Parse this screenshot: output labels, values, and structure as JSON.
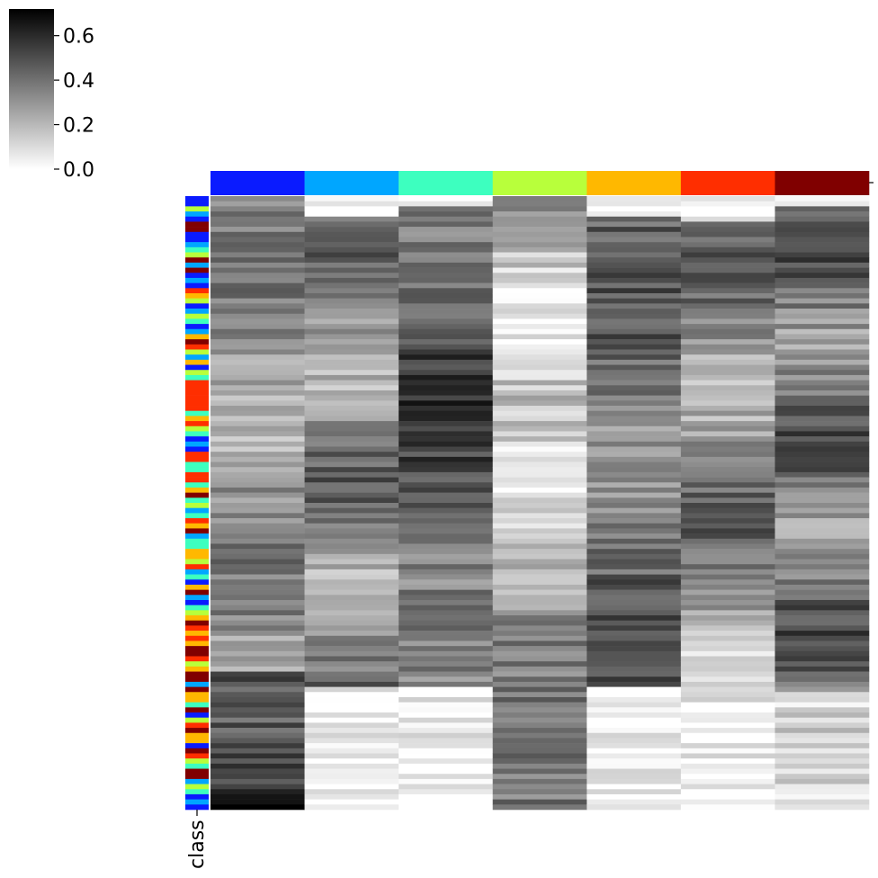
{
  "chart_data": {
    "type": "heatmap",
    "title": "",
    "row_color_label": "class",
    "colormap": "Greys",
    "colorbar": {
      "range": [
        0.0,
        0.72
      ],
      "ticks": [
        {
          "value": 0.0,
          "label": "0.0"
        },
        {
          "value": 0.2,
          "label": "0.2"
        },
        {
          "value": 0.4,
          "label": "0.4"
        },
        {
          "value": 0.6,
          "label": "0.6"
        }
      ],
      "placement": "top-left"
    },
    "columns": [
      {
        "color": "#0a1bff"
      },
      {
        "color": "#00a6ff"
      },
      {
        "color": "#3dffbf"
      },
      {
        "color": "#b8ff3b"
      },
      {
        "color": "#ffb800"
      },
      {
        "color": "#ff2e00"
      },
      {
        "color": "#800000"
      }
    ],
    "row_count": 120,
    "row_class_colors": [
      "#0a1bff",
      "#00a6ff",
      "#3dffbf",
      "#b8ff3b",
      "#ffb800",
      "#ff2e00",
      "#800000"
    ],
    "row_class_sequence": [
      0,
      0,
      3,
      1,
      0,
      6,
      6,
      0,
      0,
      1,
      2,
      3,
      6,
      1,
      6,
      0,
      1,
      0,
      5,
      4,
      3,
      0,
      1,
      3,
      2,
      0,
      1,
      4,
      6,
      5,
      3,
      1,
      4,
      0,
      3,
      2,
      5,
      5,
      5,
      5,
      5,
      5,
      2,
      4,
      5,
      3,
      2,
      0,
      1,
      0,
      5,
      5,
      2,
      2,
      5,
      5,
      2,
      4,
      6,
      2,
      3,
      1,
      2,
      5,
      4,
      6,
      1,
      2,
      2,
      4,
      4,
      3,
      5,
      1,
      2,
      0,
      4,
      6,
      1,
      0,
      2,
      3,
      4,
      6,
      5,
      4,
      5,
      4,
      6,
      6,
      5,
      3,
      4,
      6,
      6,
      1,
      6,
      4,
      4,
      2,
      6,
      0,
      3,
      5,
      6,
      4,
      4,
      0,
      6,
      5,
      3,
      2,
      6,
      6,
      1,
      3,
      2,
      0,
      1,
      0
    ]
  }
}
